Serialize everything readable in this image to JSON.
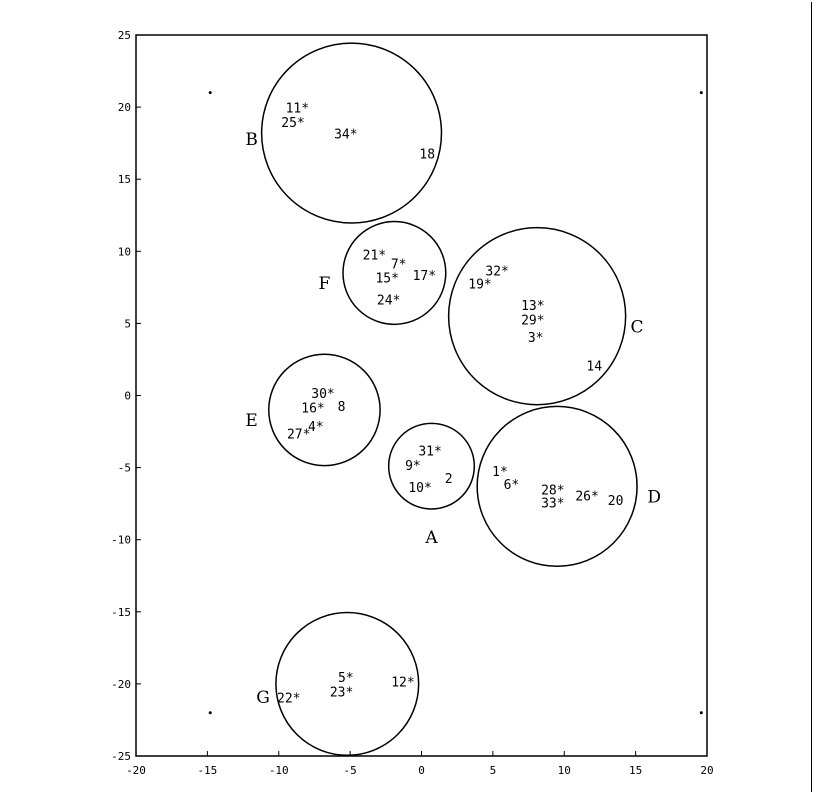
{
  "chart_data": {
    "type": "scatter",
    "title": "",
    "xlabel": "",
    "ylabel": "",
    "xlim": [
      -20,
      20
    ],
    "ylim": [
      -25,
      25
    ],
    "x_ticks": [
      -20,
      -15,
      -10,
      -5,
      0,
      5,
      10,
      15,
      20
    ],
    "y_ticks": [
      25,
      20,
      15,
      10,
      5,
      0,
      -5,
      -10,
      -15,
      -20,
      -25
    ],
    "grid": false,
    "corner_dots": [
      {
        "x": -14.8,
        "y": 21.0
      },
      {
        "x": 19.6,
        "y": 21.0
      },
      {
        "x": -14.8,
        "y": -22.0
      },
      {
        "x": 19.6,
        "y": -22.0
      }
    ],
    "circles": [
      {
        "name": "B",
        "cx": -4.9,
        "cy": 18.2,
        "r": 6.3,
        "label_x": -11.9,
        "label_y": 17.8
      },
      {
        "name": "F",
        "cx": -1.9,
        "cy": 8.5,
        "r": 3.6,
        "label_x": -6.8,
        "label_y": 7.8
      },
      {
        "name": "C",
        "cx": 8.1,
        "cy": 5.5,
        "r": 6.2,
        "label_x": 15.1,
        "label_y": 4.8
      },
      {
        "name": "E",
        "cx": -6.8,
        "cy": -1.0,
        "r": 3.9,
        "label_x": -11.9,
        "label_y": -1.7
      },
      {
        "name": "A",
        "cx": 0.7,
        "cy": -4.9,
        "r": 3.0,
        "label_x": 0.7,
        "label_y": -9.8
      },
      {
        "name": "D",
        "cx": 9.5,
        "cy": -6.3,
        "r": 5.6,
        "label_x": 16.3,
        "label_y": -7.0
      },
      {
        "name": "G",
        "cx": -5.2,
        "cy": -20.0,
        "r": 5.0,
        "label_x": -11.1,
        "label_y": -20.9
      }
    ],
    "points": [
      {
        "label": "1",
        "x": 5.5,
        "y": -5.3,
        "star": true
      },
      {
        "label": "2",
        "x": 1.9,
        "y": -5.8,
        "star": false
      },
      {
        "label": "3",
        "x": 8.0,
        "y": 4.0,
        "star": true
      },
      {
        "label": "4",
        "x": -7.4,
        "y": -2.2,
        "star": true
      },
      {
        "label": "5",
        "x": -5.3,
        "y": -19.6,
        "star": true
      },
      {
        "label": "6",
        "x": 6.3,
        "y": -6.2,
        "star": true
      },
      {
        "label": "7",
        "x": -1.6,
        "y": 9.1,
        "star": true
      },
      {
        "label": "8",
        "x": -5.6,
        "y": -0.8,
        "star": false
      },
      {
        "label": "9",
        "x": -0.6,
        "y": -4.9,
        "star": true
      },
      {
        "label": "10",
        "x": -0.1,
        "y": -6.4,
        "star": true
      },
      {
        "label": "11",
        "x": -8.7,
        "y": 19.9,
        "star": true
      },
      {
        "label": "12",
        "x": -1.3,
        "y": -19.9,
        "star": true
      },
      {
        "label": "13",
        "x": 7.8,
        "y": 6.2,
        "star": true
      },
      {
        "label": "14",
        "x": 12.1,
        "y": 2.0,
        "star": false
      },
      {
        "label": "15",
        "x": -2.4,
        "y": 8.1,
        "star": true
      },
      {
        "label": "16",
        "x": -7.6,
        "y": -0.9,
        "star": true
      },
      {
        "label": "17",
        "x": 0.2,
        "y": 8.3,
        "star": true
      },
      {
        "label": "18",
        "x": 0.4,
        "y": 16.7,
        "star": false
      },
      {
        "label": "19",
        "x": 4.1,
        "y": 7.7,
        "star": true
      },
      {
        "label": "20",
        "x": 13.6,
        "y": -7.3,
        "star": false
      },
      {
        "label": "21",
        "x": -3.3,
        "y": 9.7,
        "star": true
      },
      {
        "label": "22",
        "x": -9.3,
        "y": -21.0,
        "star": true
      },
      {
        "label": "23",
        "x": -5.6,
        "y": -20.6,
        "star": true
      },
      {
        "label": "24",
        "x": -2.3,
        "y": 6.6,
        "star": true
      },
      {
        "label": "25",
        "x": -9.0,
        "y": 18.9,
        "star": true
      },
      {
        "label": "26",
        "x": 11.6,
        "y": -7.0,
        "star": true
      },
      {
        "label": "27",
        "x": -8.6,
        "y": -2.7,
        "star": true
      },
      {
        "label": "28",
        "x": 9.2,
        "y": -6.6,
        "star": true
      },
      {
        "label": "29",
        "x": 7.8,
        "y": 5.2,
        "star": true
      },
      {
        "label": "30",
        "x": -6.9,
        "y": 0.1,
        "star": true
      },
      {
        "label": "31",
        "x": 0.6,
        "y": -3.9,
        "star": true
      },
      {
        "label": "32",
        "x": 5.3,
        "y": 8.6,
        "star": true
      },
      {
        "label": "33",
        "x": 9.2,
        "y": -7.5,
        "star": true
      },
      {
        "label": "34",
        "x": -5.3,
        "y": 18.1,
        "star": true
      }
    ]
  }
}
